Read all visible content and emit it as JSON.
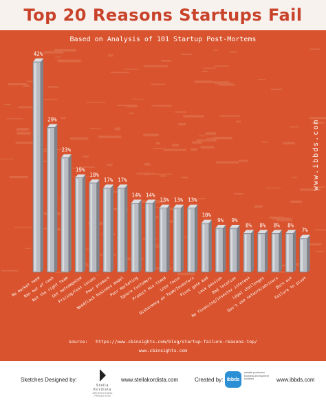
{
  "header": {
    "title": "Top 20 Reasons Startups Fail",
    "subtitle": "Based on Analysis of 101 Startup Post-Mortems",
    "side_url": "www.ibbds.com"
  },
  "chart_data": {
    "type": "bar",
    "title": "Top 20 Reasons Startups Fail",
    "subtitle": "Based on Analysis of 101 Startup Post-Mortems",
    "categories": [
      "No market need",
      "Ran out of cash",
      "Not the right team",
      "Get outcompeted",
      "Pricing/Cost issues",
      "Poor product",
      "Need/Lack business model",
      "Poor marketing",
      "Ignore Customers",
      "Product mis-timed",
      "Lose focus",
      "Disharmony on Team/Investors",
      "Pivot gone bad",
      "Lack passion",
      "Bad location",
      "No financing/investor interest",
      "Legal challenges",
      "Don't use network/advisors",
      "Burn out",
      "Failure to pivot"
    ],
    "values": [
      42,
      29,
      23,
      19,
      18,
      17,
      17,
      14,
      14,
      13,
      13,
      13,
      10,
      9,
      9,
      8,
      8,
      8,
      8,
      7
    ],
    "value_labels": [
      "42%",
      "29%",
      "23%",
      "19%",
      "18%",
      "17%",
      "17%",
      "14%",
      "14%",
      "13%",
      "13%",
      "13%",
      "10%",
      "9%",
      "9%",
      "8%",
      "8%",
      "8%",
      "8%",
      "7%"
    ],
    "ylim": [
      0,
      42
    ],
    "grid": false,
    "colors": {
      "bar": "#b9bcc2",
      "bar_highlight": "#dcdee2",
      "bar_shadow": "#80838a",
      "background": "#d9542e"
    }
  },
  "source": {
    "label": "source:",
    "url": "https://www.cbinsights.com/blog/startup-failure-reasons-top/",
    "site": "www.cbinsights.com"
  },
  "footer": {
    "sketches_label": "Sketches Designed by:",
    "sk_logo_name": "Stella Kordista",
    "sk_logo_sub": "ARCHITECTURAL PRODUCTION",
    "sk_url": "www.stellakordista.com",
    "created_label": "Created by:",
    "ibbds_logo": "ibbds",
    "ibbds_tagline": "website production business development solutions",
    "ibbds_url": "www.ibbds.com"
  }
}
